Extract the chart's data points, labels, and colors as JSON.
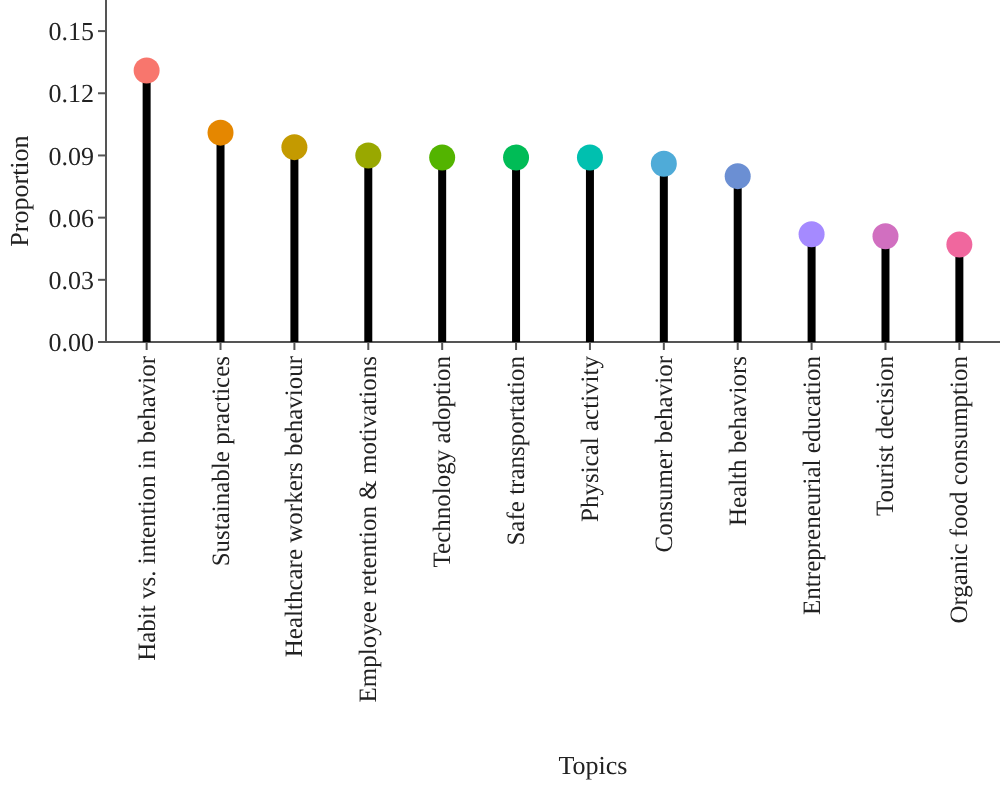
{
  "chart_data": {
    "type": "lollipop",
    "xlabel": "Topics",
    "ylabel": "Proportion",
    "categories": [
      "Habit vs. intention in behavior",
      "Sustainable practices",
      "Healthcare workers behaviour",
      "Employee retention & motivations",
      "Technology adoption",
      "Safe transportation",
      "Physical activity",
      "Consumer behavior",
      "Health behaviors",
      "Entrepreneurial education",
      "Tourist decision",
      "Organic food consumption"
    ],
    "values": [
      0.131,
      0.101,
      0.094,
      0.09,
      0.089,
      0.089,
      0.089,
      0.086,
      0.08,
      0.052,
      0.051,
      0.047
    ],
    "colors": [
      "#f8766d",
      "#e58700",
      "#c49a00",
      "#99a800",
      "#53b400",
      "#00bc56",
      "#00c0af",
      "#4fabd8",
      "#6b8fd3",
      "#a58aff",
      "#d16fc0",
      "#f0679e"
    ],
    "ylim": [
      0,
      0.165
    ],
    "yticks": [
      {
        "value": 0,
        "label": "0.00"
      },
      {
        "value": 0.03,
        "label": "0.03"
      },
      {
        "value": 0.06,
        "label": "0.06"
      },
      {
        "value": 0.09,
        "label": "0.09"
      },
      {
        "value": 0.12,
        "label": "0.12"
      },
      {
        "value": 0.15,
        "label": "0.15"
      }
    ]
  }
}
